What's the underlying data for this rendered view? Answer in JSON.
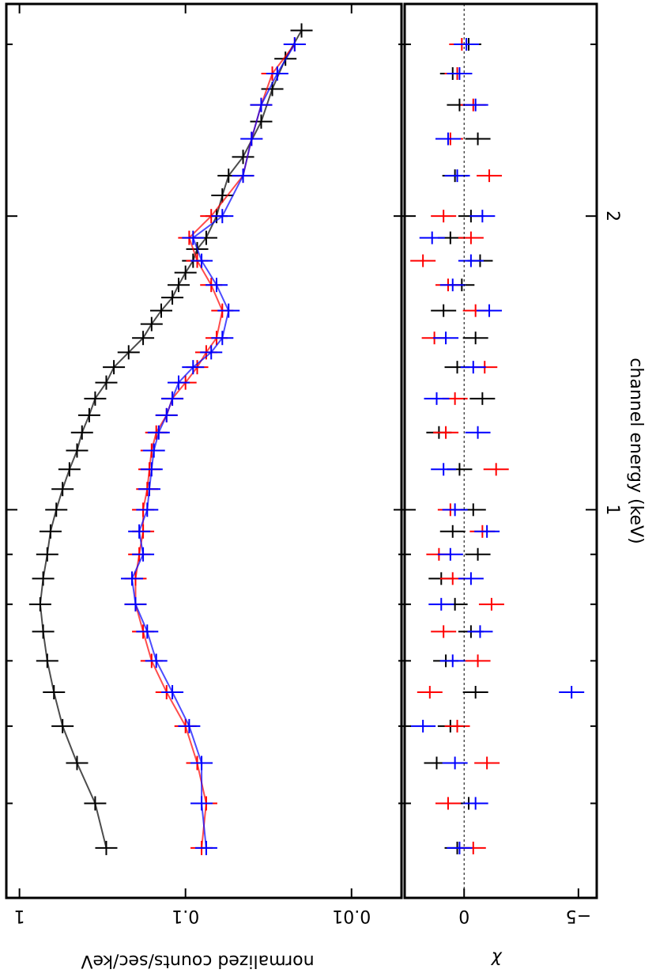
{
  "chart_data": [
    {
      "type": "scatter",
      "panel": "spectrum",
      "ylabel": "normalized counts/sec/keV",
      "y_tick_labels": [
        "1",
        "0.1",
        "0.01"
      ],
      "yscale": "log",
      "ylim": [
        0.005,
        1.2
      ],
      "xlabel": "channel energy (keV)",
      "x_tick_labels": [
        "1",
        "2"
      ],
      "xscale": "log",
      "xlim": [
        0.4,
        3.3
      ],
      "grid": false,
      "colors": {
        "black": "#000000",
        "red": "#ff0000",
        "blue": "#0000ff",
        "grey": "#b0b0b0",
        "pink": "#ffaaaa",
        "lightblue": "#aab0ff"
      },
      "series": [
        {
          "color": "#000000",
          "x": [
            0.45,
            0.5,
            0.55,
            0.6,
            0.65,
            0.7,
            0.75,
            0.8,
            0.85,
            0.9,
            0.95,
            1.0,
            1.05,
            1.1,
            1.15,
            1.2,
            1.25,
            1.3,
            1.35,
            1.4,
            1.45,
            1.5,
            1.55,
            1.6,
            1.65,
            1.7,
            1.75,
            1.8,
            1.85,
            1.9,
            2.0,
            2.1,
            2.2,
            2.3,
            2.5,
            2.7,
            2.9,
            3.1
          ],
          "y": [
            0.3,
            0.35,
            0.45,
            0.55,
            0.62,
            0.68,
            0.72,
            0.75,
            0.72,
            0.68,
            0.65,
            0.6,
            0.55,
            0.5,
            0.45,
            0.42,
            0.38,
            0.35,
            0.3,
            0.27,
            0.22,
            0.18,
            0.16,
            0.14,
            0.12,
            0.11,
            0.1,
            0.09,
            0.085,
            0.075,
            0.065,
            0.06,
            0.055,
            0.045,
            0.035,
            0.03,
            0.025,
            0.02
          ]
        },
        {
          "color": "#ff0000",
          "x": [
            0.45,
            0.5,
            0.55,
            0.6,
            0.65,
            0.7,
            0.75,
            0.8,
            0.85,
            0.9,
            0.95,
            1.0,
            1.05,
            1.1,
            1.15,
            1.2,
            1.25,
            1.3,
            1.35,
            1.4,
            1.45,
            1.5,
            1.6,
            1.7,
            1.8,
            1.9,
            2.0,
            2.2,
            2.4,
            2.6,
            2.8,
            3.0
          ],
          "y": [
            0.08,
            0.075,
            0.085,
            0.1,
            0.13,
            0.16,
            0.18,
            0.2,
            0.2,
            0.19,
            0.18,
            0.18,
            0.17,
            0.165,
            0.16,
            0.15,
            0.13,
            0.12,
            0.1,
            0.085,
            0.075,
            0.065,
            0.06,
            0.07,
            0.085,
            0.095,
            0.07,
            0.045,
            0.04,
            0.035,
            0.03,
            0.022
          ]
        },
        {
          "color": "#0000ff",
          "x": [
            0.45,
            0.5,
            0.55,
            0.6,
            0.65,
            0.7,
            0.75,
            0.8,
            0.85,
            0.9,
            0.95,
            1.0,
            1.05,
            1.1,
            1.15,
            1.2,
            1.25,
            1.3,
            1.35,
            1.4,
            1.45,
            1.5,
            1.6,
            1.7,
            1.8,
            1.9,
            2.0,
            2.2,
            2.4,
            2.6,
            2.8,
            3.0
          ],
          "y": [
            0.075,
            0.08,
            0.08,
            0.095,
            0.12,
            0.15,
            0.17,
            0.2,
            0.21,
            0.18,
            0.19,
            0.17,
            0.165,
            0.16,
            0.155,
            0.145,
            0.13,
            0.12,
            0.11,
            0.09,
            0.07,
            0.06,
            0.055,
            0.065,
            0.08,
            0.09,
            0.06,
            0.045,
            0.04,
            0.035,
            0.028,
            0.022
          ]
        }
      ]
    },
    {
      "type": "scatter",
      "panel": "residuals",
      "ylabel": "χ",
      "y_tick_labels": [
        "0",
        "−5"
      ],
      "ylim": [
        -5.8,
        2.6
      ],
      "xlabel": "channel energy (keV)",
      "x_tick_labels": [
        "1",
        "2"
      ],
      "xscale": "log",
      "xlim": [
        0.4,
        3.3
      ],
      "grid": false,
      "colors": {
        "black": "#000000",
        "red": "#ff0000",
        "blue": "#0000ff"
      },
      "series": [
        {
          "color": "#000000",
          "x": [
            0.45,
            0.5,
            0.55,
            0.6,
            0.65,
            0.7,
            0.75,
            0.8,
            0.85,
            0.9,
            0.95,
            1.0,
            1.1,
            1.2,
            1.3,
            1.4,
            1.5,
            1.6,
            1.7,
            1.8,
            1.9,
            2.0,
            2.2,
            2.4,
            2.6,
            2.8,
            3.0
          ],
          "y": [
            0.3,
            -0.2,
            1.2,
            0.6,
            -0.5,
            0.8,
            -0.3,
            0.4,
            1.0,
            -0.6,
            0.5,
            -0.4,
            0.2,
            1.1,
            -0.8,
            0.3,
            -0.5,
            0.9,
            0.1,
            -0.7,
            0.6,
            -0.3,
            0.4,
            -0.6,
            0.2,
            0.5,
            -0.2
          ]
        },
        {
          "color": "#ff0000",
          "x": [
            0.45,
            0.5,
            0.55,
            0.6,
            0.65,
            0.7,
            0.75,
            0.8,
            0.85,
            0.9,
            0.95,
            1.0,
            1.1,
            1.2,
            1.3,
            1.4,
            1.5,
            1.6,
            1.7,
            1.8,
            1.9,
            2.0,
            2.2,
            2.4,
            2.6,
            2.8,
            3.0
          ],
          "y": [
            -0.4,
            0.7,
            -1.0,
            0.3,
            1.5,
            -0.6,
            0.9,
            -1.2,
            0.5,
            1.1,
            -0.8,
            0.6,
            -1.4,
            0.8,
            0.4,
            -0.9,
            1.3,
            -0.5,
            0.7,
            1.8,
            -0.3,
            0.9,
            -1.1,
            0.6,
            -0.4,
            0.3,
            0.1
          ]
        },
        {
          "color": "#0000ff",
          "x": [
            0.45,
            0.5,
            0.55,
            0.6,
            0.65,
            0.7,
            0.75,
            0.8,
            0.85,
            0.9,
            0.95,
            1.0,
            1.1,
            1.2,
            1.3,
            1.4,
            1.5,
            1.6,
            1.7,
            1.8,
            1.9,
            2.0,
            2.2,
            2.4,
            2.6,
            2.8,
            3.0
          ],
          "y": [
            0.2,
            -0.5,
            0.4,
            1.8,
            -4.7,
            0.5,
            -0.7,
            1.0,
            -0.3,
            0.6,
            -1.0,
            0.4,
            0.9,
            -0.6,
            1.2,
            -0.4,
            0.8,
            -1.1,
            0.5,
            -0.3,
            1.4,
            -0.8,
            0.3,
            0.7,
            -0.5,
            0.2,
            -0.1
          ]
        }
      ]
    }
  ]
}
